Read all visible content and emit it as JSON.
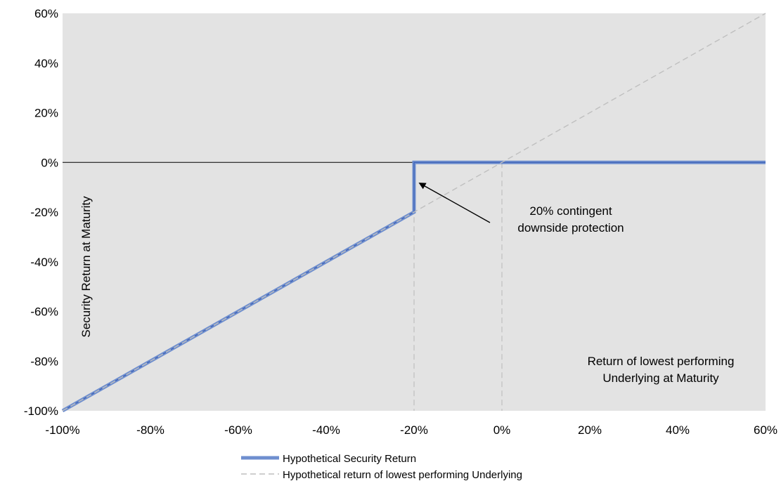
{
  "chart_data": {
    "type": "line",
    "x": [
      -100,
      -80,
      -60,
      -40,
      -20,
      0,
      20,
      40,
      60
    ],
    "xlim": [
      -100,
      60
    ],
    "ylim": [
      -100,
      60
    ],
    "x_ticks": [
      -100,
      -80,
      -60,
      -40,
      -20,
      0,
      20,
      40,
      60
    ],
    "y_ticks": [
      60,
      40,
      20,
      0,
      -20,
      -40,
      -60,
      -80,
      -100
    ],
    "x_tick_labels": [
      "-100%",
      "-80%",
      "-60%",
      "-40%",
      "-20%",
      "0%",
      "20%",
      "40%",
      "60%"
    ],
    "y_tick_labels": [
      "60%",
      "40%",
      "20%",
      "0%",
      "-20%",
      "-40%",
      "-60%",
      "-80%",
      "-100%"
    ],
    "ylabel": "Security Return at Maturity",
    "xlabel_lines": [
      "Return of lowest performing",
      "Underlying at Maturity"
    ],
    "series": [
      {
        "name": "Hypothetical Security Return",
        "color": "#6f8fcf",
        "points": [
          [
            -100,
            -100
          ],
          [
            -20,
            -20
          ],
          [
            -20,
            0
          ],
          [
            60,
            0
          ]
        ]
      },
      {
        "name": "Hypothetical return of lowest performing Underlying",
        "color": "#bfbfbf",
        "points": [
          [
            -100,
            -100
          ],
          [
            60,
            60
          ]
        ]
      }
    ],
    "annotation": {
      "lines": [
        "20% contingent",
        "downside protection"
      ],
      "arrow_target": [
        -19,
        -9
      ]
    },
    "reference_lines_x": [
      -20,
      0
    ],
    "grid": false,
    "background": "#e3e3e3",
    "legend_position": "bottom"
  }
}
